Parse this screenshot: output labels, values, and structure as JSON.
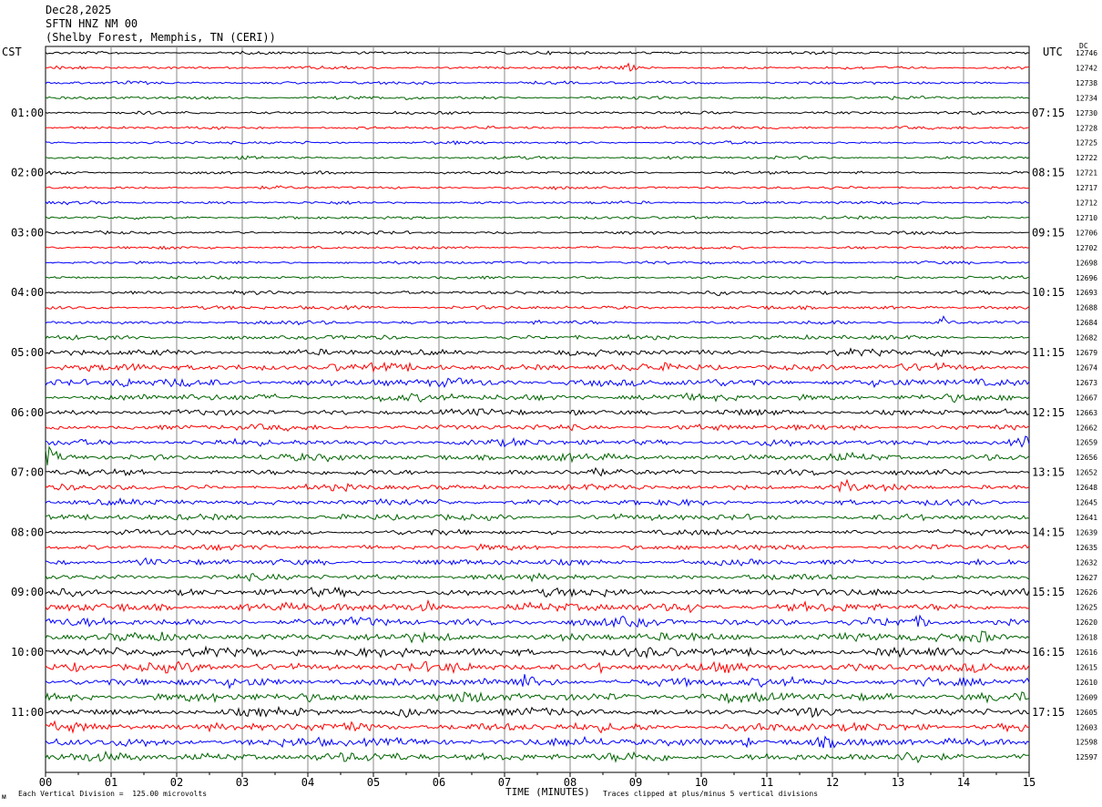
{
  "header": {
    "date": "Dec28,2025",
    "station": "SFTN HNZ NM 00",
    "location": "(Shelby Forest, Memphis, TN (CERI))"
  },
  "left_tz": "CST",
  "right_tz": "UTC",
  "dc_label": "DC",
  "footer": {
    "scale_mark": "ᴍ",
    "scale_note": "Each Vertical Division =  125.00 microvolts",
    "xlabel": "TIME (MINUTES)",
    "clip_note": "Traces clipped at plus/minus 5 vertical divisions"
  },
  "colors": {
    "line1": "#000000",
    "line2": "#ff0000",
    "line3": "#0000ff",
    "line4": "#006400",
    "grid": "#888888"
  },
  "chart_data": {
    "type": "line",
    "title": "SFTN HNZ NM 00",
    "xlabel": "TIME (MINUTES)",
    "x_ticks": [
      "00",
      "01",
      "02",
      "03",
      "04",
      "05",
      "06",
      "07",
      "08",
      "09",
      "10",
      "11",
      "12",
      "13",
      "14",
      "15"
    ],
    "xlim": [
      0,
      15
    ],
    "rows": 48,
    "row_colors": [
      "#000000",
      "#ff0000",
      "#0000ff",
      "#006400"
    ],
    "left_hour_labels": [
      "01:00",
      "02:00",
      "03:00",
      "04:00",
      "05:00",
      "06:00",
      "07:00",
      "08:00",
      "09:00",
      "10:00",
      "11:00"
    ],
    "right_hour_labels": [
      "07:15",
      "08:15",
      "09:15",
      "10:15",
      "11:15",
      "12:15",
      "13:15",
      "14:15",
      "15:15",
      "16:15",
      "17:15"
    ],
    "dc_values": [
      "12746",
      "12742",
      "12738",
      "12734",
      "12730",
      "12728",
      "12725",
      "12722",
      "12721",
      "12717",
      "12712",
      "12710",
      "12706",
      "12702",
      "12698",
      "12696",
      "12693",
      "12688",
      "12684",
      "12682",
      "12679",
      "12674",
      "12673",
      "12667",
      "12663",
      "12662",
      "12659",
      "12656",
      "12652",
      "12648",
      "12645",
      "12641",
      "12639",
      "12635",
      "12632",
      "12627",
      "12626",
      "12625",
      "12620",
      "12618",
      "12616",
      "12615",
      "12610",
      "12609",
      "12605",
      "12603",
      "12598",
      "12597"
    ],
    "noise_level_by_row": [
      1,
      1,
      1,
      1,
      1,
      1,
      1,
      1,
      1,
      1,
      1,
      1,
      1,
      1,
      1,
      1,
      1.2,
      1.3,
      1.3,
      1.5,
      2,
      2.5,
      2.6,
      2.4,
      2,
      2,
      2.2,
      2.4,
      2,
      2,
      2,
      2,
      1.8,
      1.8,
      2,
      2,
      2.6,
      2.8,
      2.8,
      2.8,
      3,
      3,
      3,
      3,
      2.6,
      3,
      3,
      3
    ],
    "events": [
      {
        "row": 1,
        "t": 8.9,
        "amp": 4
      },
      {
        "row": 3,
        "t": 5.5,
        "amp": 2
      },
      {
        "row": 16,
        "t": 10.3,
        "amp": 3
      },
      {
        "row": 18,
        "t": 13.7,
        "amp": 6
      },
      {
        "row": 20,
        "t": 13.6,
        "amp": 6
      },
      {
        "row": 21,
        "t": 4.4,
        "amp": 3
      },
      {
        "row": 22,
        "t": 1.2,
        "amp": 5
      },
      {
        "row": 23,
        "t": 5.2,
        "amp": 3
      },
      {
        "row": 24,
        "t": 8.1,
        "amp": 5
      },
      {
        "row": 25,
        "t": 4.5,
        "amp": 3
      },
      {
        "row": 26,
        "t": 15.0,
        "amp": 8
      },
      {
        "row": 27,
        "t": 0.05,
        "amp": 9
      },
      {
        "row": 28,
        "t": 8.35,
        "amp": 10
      },
      {
        "row": 29,
        "t": 12.2,
        "amp": 9
      },
      {
        "row": 34,
        "t": 1.5,
        "amp": 5
      },
      {
        "row": 36,
        "t": 7.7,
        "amp": 5
      },
      {
        "row": 37,
        "t": 5.85,
        "amp": 5
      },
      {
        "row": 37,
        "t": 9.8,
        "amp": 6
      },
      {
        "row": 38,
        "t": 13.4,
        "amp": 5
      },
      {
        "row": 39,
        "t": 14.3,
        "amp": 6
      },
      {
        "row": 40,
        "t": 3.2,
        "amp": 4
      },
      {
        "row": 40,
        "t": 3.8,
        "amp": 4
      },
      {
        "row": 41,
        "t": 0.5,
        "amp": 6
      },
      {
        "row": 41,
        "t": 8.5,
        "amp": 4
      },
      {
        "row": 42,
        "t": 7.3,
        "amp": 5
      },
      {
        "row": 43,
        "t": 6.3,
        "amp": 5
      },
      {
        "row": 44,
        "t": 5.5,
        "amp": 4
      },
      {
        "row": 44,
        "t": 11.7,
        "amp": 3
      },
      {
        "row": 45,
        "t": 4.6,
        "amp": 5
      },
      {
        "row": 46,
        "t": 10.7,
        "amp": 5
      },
      {
        "row": 47,
        "t": 13.3,
        "amp": 4
      }
    ]
  }
}
